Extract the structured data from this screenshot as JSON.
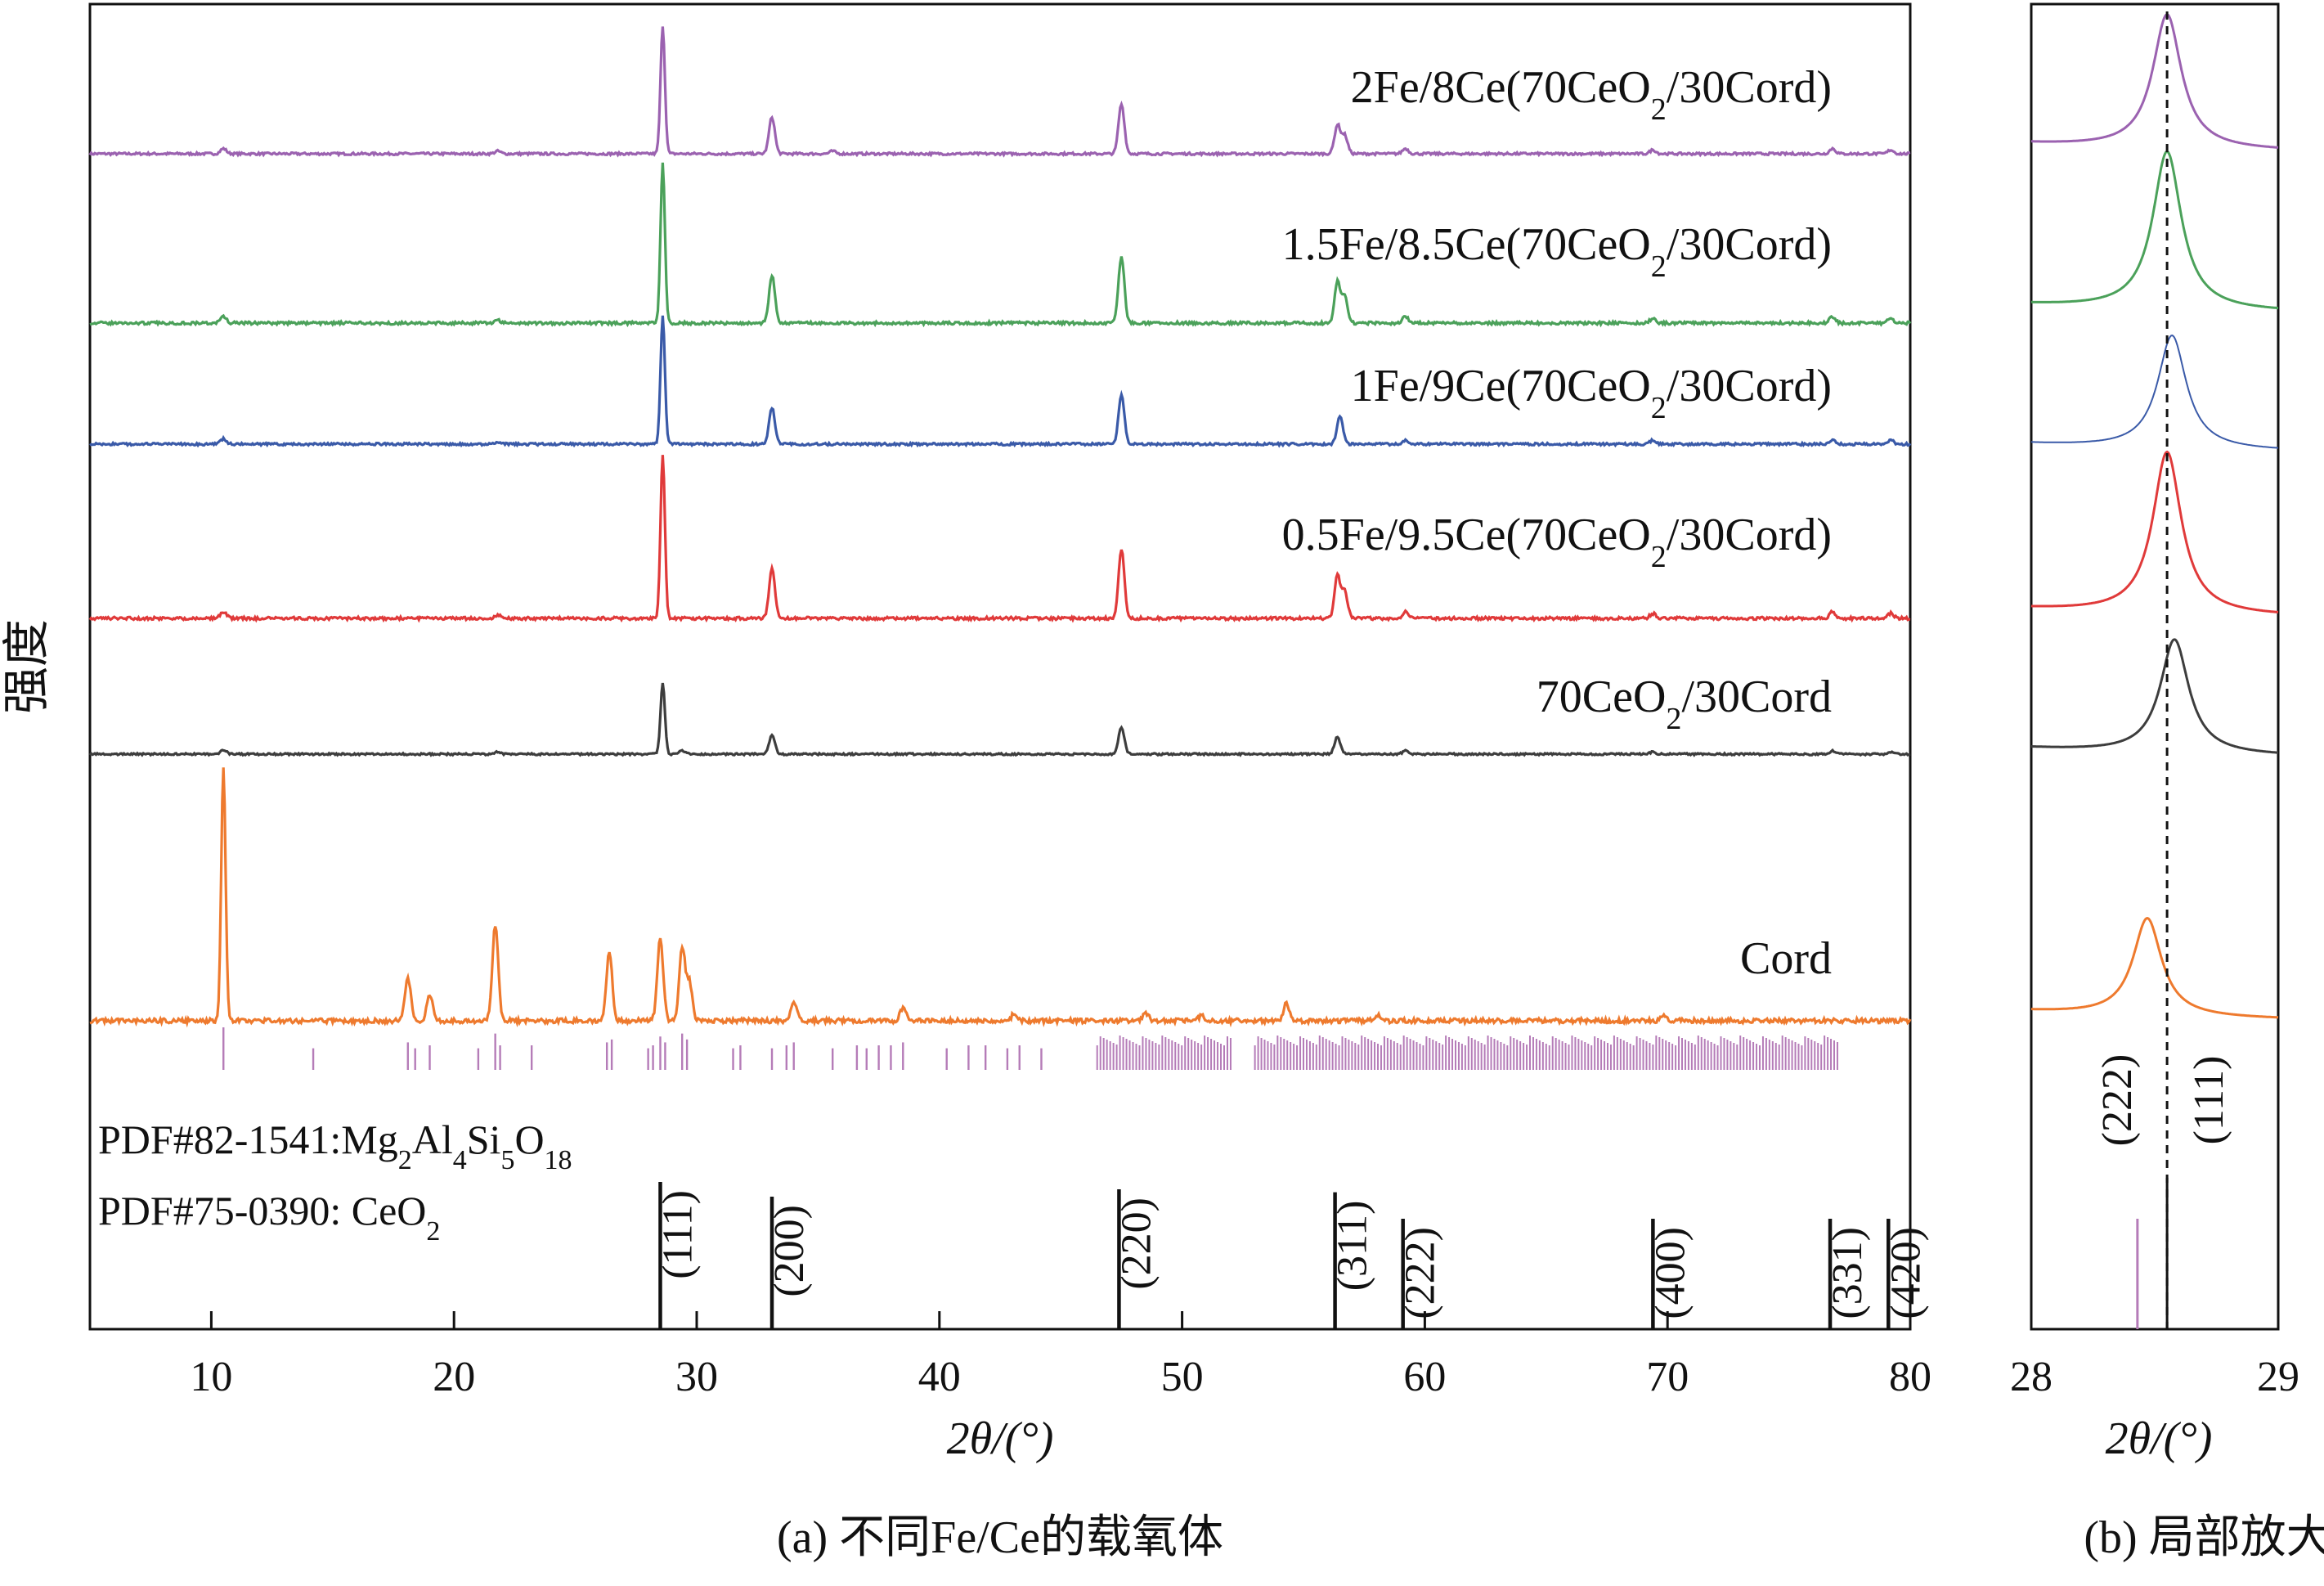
{
  "chart_data": [
    {
      "type": "line",
      "panel": "a",
      "caption": "(a) 不同Fe/Ce的载氧体",
      "xlabel": "2θ/(°)",
      "ylabel": "强度",
      "xlim": [
        5,
        80
      ],
      "xticks": [
        10,
        20,
        30,
        40,
        50,
        60,
        70,
        80
      ],
      "grid": false,
      "legend": "inline labels at right end of each trace",
      "series": [
        {
          "name": "2Fe/8Ce(70CeO2/30Cord)",
          "label": {
            "pre": "2Fe/8Ce(70CeO",
            "sub": "2",
            "post": "/30Cord)"
          },
          "color": "#9b62b0",
          "peaks": [
            [
              10.5,
              0.04
            ],
            [
              21.8,
              0.02
            ],
            [
              28.6,
              0.98
            ],
            [
              33.1,
              0.28
            ],
            [
              35.6,
              0.02
            ],
            [
              47.5,
              0.38
            ],
            [
              56.4,
              0.22
            ],
            [
              56.7,
              0.14
            ],
            [
              59.2,
              0.04
            ],
            [
              69.4,
              0.03
            ],
            [
              76.8,
              0.04
            ],
            [
              79.2,
              0.03
            ]
          ]
        },
        {
          "name": "1.5Fe/8.5Ce(70CeO2/30Cord)",
          "label": {
            "pre": "1.5Fe/8.5Ce(70CeO",
            "sub": "2",
            "post": "/30Cord)"
          },
          "color": "#4ba15a",
          "peaks": [
            [
              10.5,
              0.04
            ],
            [
              21.8,
              0.02
            ],
            [
              28.6,
              1.0
            ],
            [
              33.1,
              0.3
            ],
            [
              47.5,
              0.42
            ],
            [
              56.4,
              0.26
            ],
            [
              56.7,
              0.16
            ],
            [
              59.2,
              0.04
            ],
            [
              69.4,
              0.03
            ],
            [
              76.8,
              0.04
            ],
            [
              79.2,
              0.03
            ]
          ]
        },
        {
          "name": "1Fe/9Ce(70CeO2/30Cord)",
          "label": {
            "pre": "1Fe/9Ce(70CeO",
            "sub": "2",
            "post": "/30Cord)"
          },
          "color": "#3a5aa8",
          "peaks": [
            [
              10.5,
              0.04
            ],
            [
              21.8,
              0.02
            ],
            [
              28.6,
              0.98
            ],
            [
              33.1,
              0.28
            ],
            [
              47.5,
              0.38
            ],
            [
              56.5,
              0.22
            ],
            [
              59.2,
              0.03
            ],
            [
              69.4,
              0.03
            ],
            [
              76.8,
              0.03
            ],
            [
              79.2,
              0.03
            ]
          ]
        },
        {
          "name": "0.5Fe/9.5Ce(70CeO2/30Cord)",
          "label": {
            "pre": "0.5Fe/9.5Ce(70CeO",
            "sub": "2",
            "post": "/30Cord)"
          },
          "color": "#e03a3a",
          "peaks": [
            [
              10.5,
              0.04
            ],
            [
              21.8,
              0.02
            ],
            [
              28.6,
              1.0
            ],
            [
              33.1,
              0.3
            ],
            [
              47.5,
              0.42
            ],
            [
              56.4,
              0.26
            ],
            [
              56.7,
              0.16
            ],
            [
              59.2,
              0.04
            ],
            [
              69.4,
              0.03
            ],
            [
              76.8,
              0.04
            ],
            [
              79.2,
              0.03
            ]
          ]
        },
        {
          "name": "70CeO2/30Cord",
          "label": {
            "pre": "70CeO",
            "sub": "2",
            "post": "/30Cord"
          },
          "color": "#3d3d3d",
          "peaks": [
            [
              10.5,
              0.04
            ],
            [
              21.8,
              0.02
            ],
            [
              28.6,
              0.7
            ],
            [
              29.4,
              0.03
            ],
            [
              33.1,
              0.18
            ],
            [
              47.5,
              0.26
            ],
            [
              56.4,
              0.17
            ],
            [
              59.2,
              0.03
            ],
            [
              69.4,
              0.02
            ],
            [
              76.8,
              0.03
            ],
            [
              79.2,
              0.02
            ]
          ]
        },
        {
          "name": "Cord",
          "label": {
            "pre": "Cord",
            "sub": "",
            "post": ""
          },
          "color": "#ee7a2e",
          "peaks": [
            [
              10.5,
              1.0
            ],
            [
              18.1,
              0.17
            ],
            [
              19.0,
              0.1
            ],
            [
              21.7,
              0.38
            ],
            [
              26.4,
              0.27
            ],
            [
              28.5,
              0.33
            ],
            [
              29.4,
              0.29
            ],
            [
              29.7,
              0.15
            ],
            [
              34.0,
              0.08
            ],
            [
              38.5,
              0.05
            ],
            [
              43.1,
              0.03
            ],
            [
              48.5,
              0.03
            ],
            [
              50.8,
              0.02
            ],
            [
              54.3,
              0.07
            ],
            [
              58.1,
              0.02
            ],
            [
              69.8,
              0.02
            ]
          ]
        }
      ],
      "reference_patterns": [
        {
          "name": "PDF#82-1541:Mg2Al4Si5O18",
          "label": [
            [
              "PDF#82-1541:Mg",
              ""
            ],
            [
              "2",
              "sub"
            ],
            [
              "Al",
              ""
            ],
            [
              "4",
              "sub"
            ],
            [
              "Si",
              ""
            ],
            [
              "5",
              "sub"
            ],
            [
              "O",
              ""
            ],
            [
              "18",
              "sub"
            ]
          ],
          "color": "#b57cb8",
          "lines": [
            [
              10.5,
              1.0
            ],
            [
              14.2,
              0.4
            ],
            [
              18.1,
              0.6
            ],
            [
              18.4,
              0.4
            ],
            [
              19.0,
              0.5
            ],
            [
              21.0,
              0.4
            ],
            [
              21.7,
              0.9
            ],
            [
              21.9,
              0.5
            ],
            [
              23.2,
              0.5
            ],
            [
              26.3,
              0.6
            ],
            [
              26.5,
              0.7
            ],
            [
              28.0,
              0.4
            ],
            [
              28.2,
              0.5
            ],
            [
              28.5,
              0.8
            ],
            [
              28.7,
              0.6
            ],
            [
              29.4,
              0.9
            ],
            [
              29.6,
              0.7
            ],
            [
              31.5,
              0.4
            ],
            [
              31.8,
              0.5
            ],
            [
              33.1,
              0.4
            ],
            [
              33.7,
              0.5
            ],
            [
              34.0,
              0.6
            ],
            [
              35.6,
              0.4
            ],
            [
              36.6,
              0.5
            ],
            [
              37.0,
              0.4
            ],
            [
              37.5,
              0.5
            ],
            [
              38.0,
              0.5
            ],
            [
              38.5,
              0.6
            ],
            [
              40.3,
              0.4
            ],
            [
              41.2,
              0.5
            ],
            [
              41.9,
              0.5
            ],
            [
              42.8,
              0.4
            ],
            [
              43.3,
              0.5
            ],
            [
              44.2,
              0.4
            ]
          ],
          "dense_bands": [
            [
              46.5,
              52.0,
              0.5
            ],
            [
              53.0,
              77.0,
              0.5
            ]
          ]
        },
        {
          "name": "PDF#75-0390: CeO2",
          "label": [
            [
              "PDF#75-0390: CeO",
              ""
            ],
            [
              "2",
              "sub"
            ]
          ],
          "color": "#111111",
          "lines": [
            [
              28.5,
              1.0,
              "(111)"
            ],
            [
              33.1,
              0.9,
              "(200)"
            ],
            [
              47.4,
              0.95,
              "(220)"
            ],
            [
              56.3,
              0.93,
              "(311)"
            ],
            [
              59.1,
              0.75,
              "(222)"
            ],
            [
              69.4,
              0.75,
              "(400)"
            ],
            [
              76.7,
              0.75,
              "(331)"
            ],
            [
              79.1,
              0.75,
              "(420)"
            ]
          ]
        }
      ]
    },
    {
      "type": "line",
      "panel": "b",
      "caption": "(b) 局部放大",
      "xlabel": "2θ/(°)",
      "xlim": [
        28,
        29
      ],
      "xticks": [
        28,
        29
      ],
      "reference_line_x": 28.55,
      "series_peaks": [
        {
          "name": "2Fe/8Ce(70CeO2/30Cord)",
          "center": 28.55,
          "height": 0.78
        },
        {
          "name": "1.5Fe/8.5Ce(70CeO2/30Cord)",
          "center": 28.55,
          "height": 0.92
        },
        {
          "name": "1Fe/9Ce(70CeO2/30Cord)",
          "center": 28.57,
          "height": 0.66
        },
        {
          "name": "0.5Fe/9.5Ce(70CeO2/30Cord)",
          "center": 28.55,
          "height": 0.92
        },
        {
          "name": "70CeO2/30Cord",
          "center": 28.58,
          "height": 0.62
        },
        {
          "name": "Cord",
          "center": 28.47,
          "height": 0.52
        }
      ],
      "reference_lines": [
        {
          "x": 28.43,
          "label": "(222)",
          "color": "#b57cb8"
        },
        {
          "x": 28.55,
          "label": "(111)",
          "color": "#111111"
        }
      ]
    }
  ]
}
